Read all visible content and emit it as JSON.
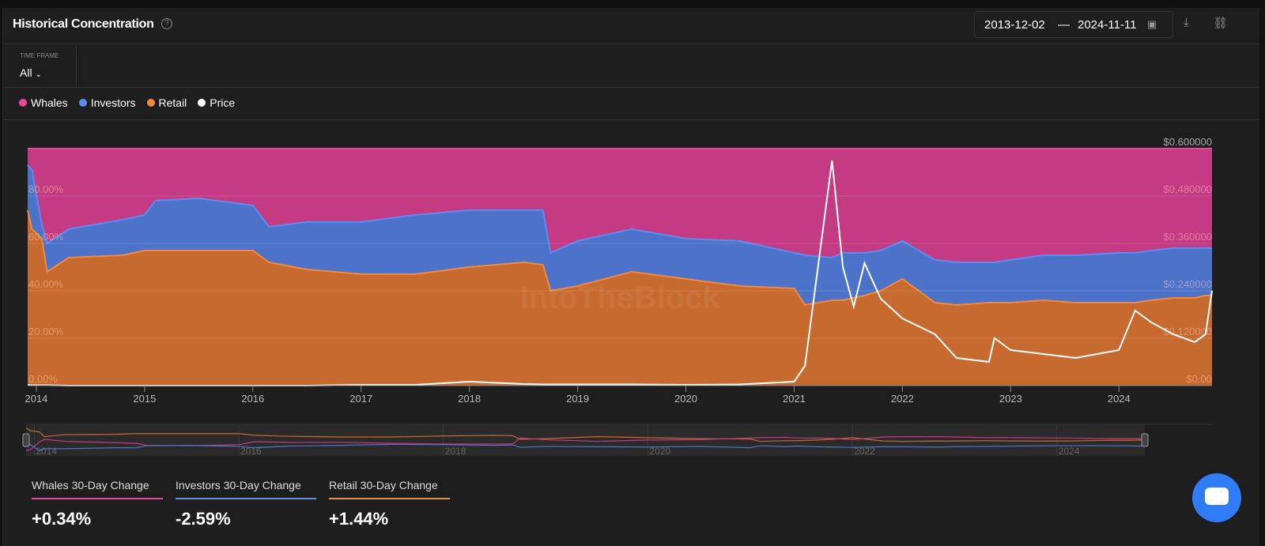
{
  "header": {
    "title": "Historical Concentration",
    "date_from": "2013-12-02",
    "date_sep": "—",
    "date_to": "2024-11-11"
  },
  "icons": [
    "help-icon",
    "calendar-icon",
    "download-icon",
    "link-icon",
    "chevron-down-icon",
    "chat-icon"
  ],
  "timeframe": {
    "label": "TIME FRAME",
    "value": "All"
  },
  "legend": [
    {
      "name": "Whales",
      "color": "#f0449a"
    },
    {
      "name": "Investors",
      "color": "#5b8cf5"
    },
    {
      "name": "Retail",
      "color": "#f5883a"
    },
    {
      "name": "Price",
      "color": "#ffffff"
    }
  ],
  "chart_data": {
    "type": "area",
    "title": "Historical Concentration",
    "x_ticks": [
      "2014",
      "2015",
      "2016",
      "2017",
      "2018",
      "2019",
      "2020",
      "2021",
      "2022",
      "2023",
      "2024"
    ],
    "y_left_ticks": [
      "0.00%",
      "20.00%",
      "40.00%",
      "60.00%",
      "80.00%"
    ],
    "y_right_ticks": [
      "$0.00",
      "$0.120000",
      "$0.240000",
      "$0.360000",
      "$0.480000",
      "$0.600000"
    ],
    "ylim_left": [
      0,
      100
    ],
    "ylim_right": [
      0,
      0.6
    ],
    "x": [
      2013.92,
      2013.96,
      2014.05,
      2014.1,
      2014.3,
      2014.8,
      2015.0,
      2015.1,
      2015.5,
      2016.0,
      2016.15,
      2016.5,
      2017.0,
      2017.5,
      2018.0,
      2018.5,
      2018.68,
      2018.75,
      2019.0,
      2019.5,
      2020.0,
      2020.5,
      2021.0,
      2021.1,
      2021.35,
      2021.45,
      2021.55,
      2021.65,
      2021.8,
      2022.0,
      2022.3,
      2022.5,
      2022.8,
      2022.85,
      2023.0,
      2023.3,
      2023.6,
      2024.0,
      2024.15,
      2024.3,
      2024.5,
      2024.7,
      2024.8,
      2024.86
    ],
    "series": [
      {
        "name": "Retail",
        "unit": "%",
        "values": [
          74,
          66,
          62,
          48,
          54,
          55,
          57,
          57,
          57,
          57,
          52,
          49,
          47,
          47,
          50,
          52,
          51,
          40,
          42,
          48,
          45,
          42,
          41,
          34,
          36,
          36,
          37,
          38,
          40,
          45,
          35,
          34,
          35,
          35,
          35,
          36,
          35,
          35,
          35,
          36,
          37,
          37,
          38,
          38
        ]
      },
      {
        "name": "Investors",
        "unit": "%",
        "values": [
          19,
          25,
          6,
          12,
          12,
          15,
          15,
          21,
          22,
          19,
          15,
          20,
          22,
          25,
          24,
          22,
          23,
          16,
          19,
          18,
          17,
          19,
          15,
          21,
          18,
          20,
          19,
          18,
          17,
          16,
          18,
          18,
          17,
          17,
          18,
          19,
          20,
          21,
          21,
          21,
          21,
          21,
          20,
          20
        ]
      },
      {
        "name": "Whales",
        "unit": "%",
        "values": [
          7,
          9,
          32,
          40,
          34,
          30,
          28,
          22,
          21,
          24,
          33,
          31,
          31,
          28,
          26,
          26,
          26,
          44,
          39,
          34,
          38,
          39,
          44,
          45,
          46,
          44,
          44,
          44,
          43,
          39,
          47,
          48,
          48,
          48,
          47,
          45,
          45,
          44,
          44,
          43,
          42,
          42,
          42,
          42
        ]
      },
      {
        "name": "Price",
        "unit": "USD",
        "values": [
          0.002,
          0.001,
          0.001,
          0.001,
          0.0,
          0.0,
          0.0,
          0.0,
          0.0,
          0.0,
          0.0,
          0.0,
          0.002,
          0.002,
          0.01,
          0.004,
          0.003,
          0.003,
          0.003,
          0.003,
          0.002,
          0.003,
          0.01,
          0.05,
          0.57,
          0.3,
          0.2,
          0.31,
          0.22,
          0.17,
          0.13,
          0.07,
          0.06,
          0.12,
          0.09,
          0.08,
          0.07,
          0.09,
          0.19,
          0.16,
          0.13,
          0.11,
          0.13,
          0.24
        ]
      }
    ],
    "navigator_ticks": [
      "2014",
      "2016",
      "2018",
      "2020",
      "2022",
      "2024"
    ],
    "watermark": "IntoTheBlock"
  },
  "stats": [
    {
      "label": "Whales 30-Day Change",
      "value": "+0.34%",
      "color": "#f0449a"
    },
    {
      "label": "Investors 30-Day Change",
      "value": "-2.59%",
      "color": "#5b8cf5"
    },
    {
      "label": "Retail 30-Day Change",
      "value": "+1.44%",
      "color": "#f5883a"
    }
  ]
}
